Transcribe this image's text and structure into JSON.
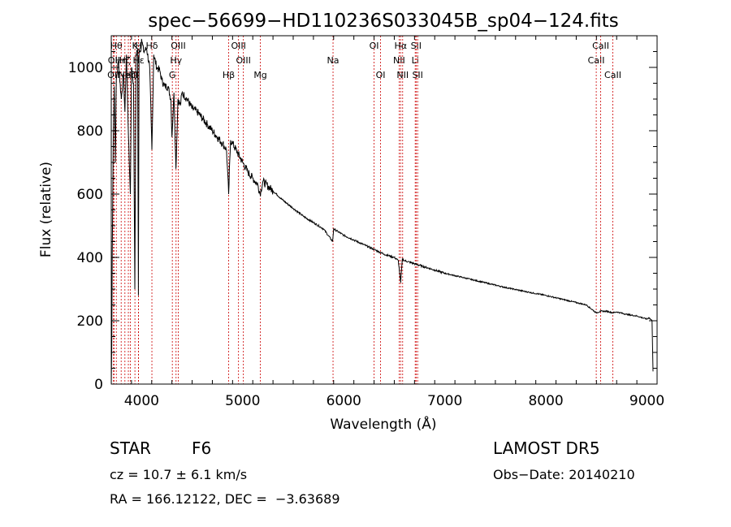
{
  "chart_data": {
    "type": "line",
    "title": "spec−56699−HD110236S033045B_sp04−124.fits",
    "xlabel": "Wavelength (Å)",
    "ylabel": "Flux (relative)",
    "xlim": [
      3700,
      9100
    ],
    "ylim": [
      0,
      1100
    ],
    "xticks": [
      4000,
      5000,
      6000,
      7000,
      8000,
      9000
    ],
    "yticks": [
      0,
      200,
      400,
      600,
      800,
      1000
    ],
    "grid": false,
    "line_color": "#000000",
    "marker_color": "#cc0000",
    "series": [
      {
        "x": [
          3700,
          3705,
          3710,
          3720,
          3730,
          3740,
          3750,
          3770,
          3800,
          3820,
          3835,
          3850,
          3870,
          3889,
          3900,
          3920,
          3933,
          3945,
          3960,
          3968,
          3975,
          3990,
          4000,
          4020,
          4050,
          4080,
          4102,
          4120,
          4150,
          4180,
          4200,
          4230,
          4260,
          4290,
          4300,
          4320,
          4340,
          4360,
          4384,
          4400,
          4450,
          4500,
          4550,
          4600,
          4650,
          4700,
          4750,
          4800,
          4840,
          4861,
          4880,
          4900,
          4950,
          5000,
          5050,
          5100,
          5150,
          5172,
          5200,
          5300,
          5400,
          5500,
          5600,
          5700,
          5800,
          5890,
          5900,
          6000,
          6100,
          6200,
          6300,
          6400,
          6500,
          6540,
          6563,
          6580,
          6600,
          6700,
          6800,
          6900,
          7000,
          7200,
          7400,
          7600,
          7800,
          8000,
          8200,
          8400,
          8498,
          8542,
          8600,
          8662,
          8700,
          8800,
          8900,
          9000,
          9020,
          9050,
          9060
        ],
        "y": [
          0,
          120,
          420,
          780,
          940,
          700,
          960,
          1020,
          900,
          980,
          860,
          1040,
          780,
          600,
          1000,
          950,
          300,
          1040,
          1060,
          280,
          1060,
          1050,
          1090,
          1050,
          1060,
          1000,
          740,
          1040,
          1000,
          990,
          960,
          940,
          940,
          900,
          780,
          920,
          680,
          900,
          880,
          920,
          900,
          870,
          860,
          840,
          820,
          800,
          780,
          760,
          740,
          600,
          770,
          760,
          730,
          700,
          670,
          650,
          630,
          600,
          640,
          610,
          580,
          555,
          530,
          510,
          490,
          450,
          490,
          470,
          455,
          440,
          425,
          410,
          400,
          390,
          320,
          395,
          390,
          380,
          370,
          360,
          350,
          335,
          320,
          305,
          292,
          280,
          265,
          250,
          225,
          230,
          230,
          225,
          228,
          220,
          215,
          205,
          210,
          200,
          40
        ]
      }
    ],
    "line_markers": [
      {
        "wavelength": 3722,
        "label": "OII",
        "row": 2
      },
      {
        "wavelength": 3727,
        "label": "OII",
        "row": 1
      },
      {
        "wavelength": 3750,
        "label": "Hθ",
        "row": 0
      },
      {
        "wavelength": 3798,
        "label": "Hη",
        "row": 1
      },
      {
        "wavelength": 3835,
        "label": "Hζ",
        "row": 1
      },
      {
        "wavelength": 3869,
        "label": "NeIII",
        "row": 2
      },
      {
        "wavelength": 3889,
        "label": "Hζ",
        "row": 2
      },
      {
        "wavelength": 3934,
        "label": "K",
        "row": 0
      },
      {
        "wavelength": 3969,
        "label": "H",
        "row": 0
      },
      {
        "wavelength": 3970,
        "label": "Hε",
        "row": 1
      },
      {
        "wavelength": 4102,
        "label": "Hδ",
        "row": 0
      },
      {
        "wavelength": 4304,
        "label": "G",
        "row": 2
      },
      {
        "wavelength": 4341,
        "label": "Hγ",
        "row": 1
      },
      {
        "wavelength": 4363,
        "label": "OIII",
        "row": 0
      },
      {
        "wavelength": 4861,
        "label": "Hβ",
        "row": 2
      },
      {
        "wavelength": 4959,
        "label": "OIII",
        "row": 0
      },
      {
        "wavelength": 5007,
        "label": "OIII",
        "row": 1
      },
      {
        "wavelength": 5175,
        "label": "Mg",
        "row": 2
      },
      {
        "wavelength": 5894,
        "label": "Na",
        "row": 1
      },
      {
        "wavelength": 6300,
        "label": "OI",
        "row": 0
      },
      {
        "wavelength": 6364,
        "label": "OI",
        "row": 2
      },
      {
        "wavelength": 6548,
        "label": "NII",
        "row": 1
      },
      {
        "wavelength": 6563,
        "label": "Hα",
        "row": 0
      },
      {
        "wavelength": 6583,
        "label": "NII",
        "row": 2
      },
      {
        "wavelength": 6707,
        "label": "Li",
        "row": 1
      },
      {
        "wavelength": 6716,
        "label": "SII",
        "row": 0
      },
      {
        "wavelength": 6731,
        "label": "SII",
        "row": 2
      },
      {
        "wavelength": 8498,
        "label": "CaII",
        "row": 1
      },
      {
        "wavelength": 8542,
        "label": "CaII",
        "row": 0
      },
      {
        "wavelength": 8662,
        "label": "CaII",
        "row": 2
      }
    ]
  },
  "info": {
    "object_class": "STAR",
    "subclass": "F6",
    "survey": "LAMOST DR5",
    "redshift": "cz = 10.7 ± 6.1 km/s",
    "obs_date": "Obs−Date: 20140210",
    "coords": "RA = 166.12122, DEC =  −3.63689"
  }
}
